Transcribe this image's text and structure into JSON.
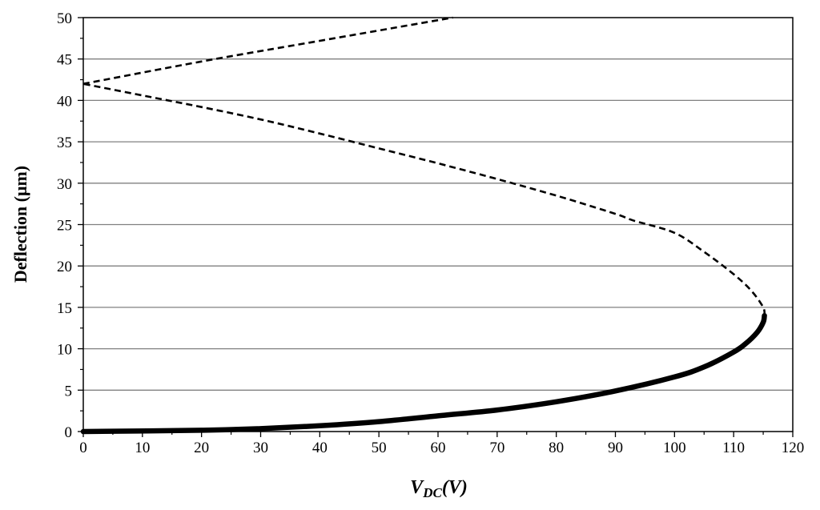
{
  "chart_data": {
    "type": "line",
    "title": "",
    "xlabel": {
      "main": "V",
      "sub": "DC",
      "unit": "(V)"
    },
    "ylabel": "Deflection (μm)",
    "xlim": [
      0,
      120
    ],
    "ylim": [
      0,
      50
    ],
    "x_ticks": [
      "0",
      "10",
      "20",
      "30",
      "40",
      "50",
      "60",
      "70",
      "80",
      "90",
      "100",
      "110",
      "120"
    ],
    "y_ticks": [
      "0",
      "5",
      "10",
      "15",
      "20",
      "25",
      "30",
      "35",
      "40",
      "45",
      "50"
    ],
    "grid": "horizontal",
    "legend": "none",
    "colors": {
      "line": "#000000",
      "grid": "#808080"
    },
    "series": [
      {
        "style": "solid",
        "points": [
          [
            0,
            0.0
          ],
          [
            20,
            0.15
          ],
          [
            30,
            0.35
          ],
          [
            40,
            0.7
          ],
          [
            50,
            1.2
          ],
          [
            60,
            1.9
          ],
          [
            70,
            2.6
          ],
          [
            80,
            3.6
          ],
          [
            90,
            4.9
          ],
          [
            100,
            6.6
          ],
          [
            105,
            7.8
          ],
          [
            110,
            9.6
          ],
          [
            112,
            10.6
          ],
          [
            114,
            12.0
          ],
          [
            115,
            13.2
          ],
          [
            115.2,
            14.0
          ]
        ]
      },
      {
        "style": "dashed",
        "points": [
          [
            115.2,
            14.0
          ],
          [
            115,
            15.0
          ],
          [
            113,
            17.0
          ],
          [
            110,
            19.0
          ],
          [
            105,
            21.7
          ],
          [
            100,
            24.0
          ],
          [
            93,
            25.5
          ],
          [
            90,
            26.3
          ],
          [
            80,
            28.5
          ],
          [
            70,
            30.5
          ],
          [
            60,
            32.4
          ],
          [
            50,
            34.2
          ],
          [
            40,
            36.0
          ],
          [
            30,
            37.7
          ],
          [
            20,
            39.2
          ],
          [
            10,
            40.6
          ],
          [
            0,
            42.0
          ]
        ]
      },
      {
        "style": "dashed",
        "points": [
          [
            0,
            42.0
          ],
          [
            20,
            44.7
          ],
          [
            40,
            47.2
          ],
          [
            62.5,
            50.0
          ]
        ]
      }
    ]
  }
}
